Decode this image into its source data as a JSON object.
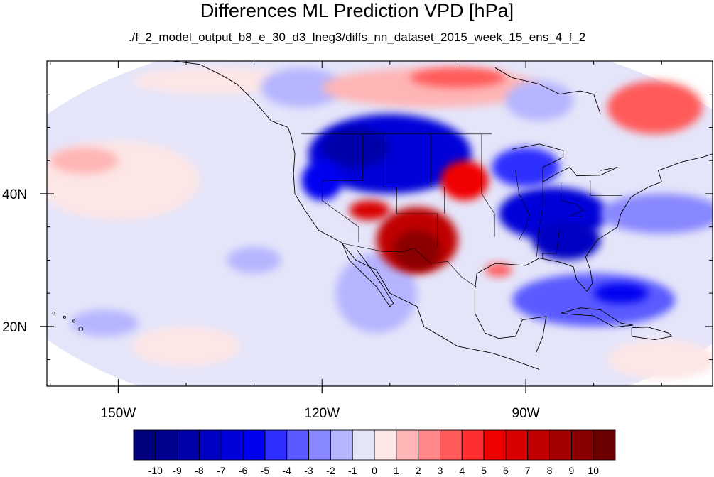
{
  "title": "Differences ML Prediction VPD [hPa]",
  "subtitle": "./f_2_model_output_b8_e_30_d3_lneg3/diffs_nn_dataset_2015_week_15_ens_4_f_2",
  "chart_data": {
    "type": "heatmap",
    "title": "Differences ML Prediction VPD [hPa]",
    "subtitle": "./f_2_model_output_b8_e_30_d3_lneg3/diffs_nn_dataset_2015_week_15_ens_4_f_2",
    "xlim": [
      -160.5,
      -62.5
    ],
    "ylim": [
      11,
      60
    ],
    "x_ticks": [
      {
        "value": -150,
        "label": "150W"
      },
      {
        "value": -120,
        "label": "120W"
      },
      {
        "value": -90,
        "label": "90W"
      }
    ],
    "y_ticks": [
      {
        "value": 40,
        "label": "40N"
      },
      {
        "value": 20,
        "label": "20N"
      }
    ],
    "colorbar": {
      "levels": [
        -10,
        -9,
        -8,
        -7,
        -6,
        -5,
        -4,
        -3,
        -2,
        -1,
        0,
        1,
        2,
        3,
        4,
        5,
        6,
        7,
        8,
        9,
        10
      ],
      "colors": [
        "#00007a",
        "#00008f",
        "#0000a8",
        "#0000c2",
        "#0000d9",
        "#0000f0",
        "#2f2fff",
        "#5a5aff",
        "#8787ff",
        "#b5b5ff",
        "#e5e5fa",
        "#fde6e6",
        "#ffb5b5",
        "#ff8787",
        "#ff5a5a",
        "#ff2f2f",
        "#f00000",
        "#d90000",
        "#c00000",
        "#a30000",
        "#8a0000",
        "#6b0000"
      ]
    },
    "regions": [
      {
        "name": "background",
        "lon": -111,
        "lat": 35,
        "rx": 60,
        "ry": 30,
        "value": -0.6
      },
      {
        "name": "north-pacific-pink",
        "lon": -150,
        "lat": 42,
        "rx": 12,
        "ry": 6,
        "value": 0.8
      },
      {
        "name": "pacific-pink-west",
        "lon": -155,
        "lat": 45,
        "rx": 5,
        "ry": 2,
        "value": 1.3
      },
      {
        "name": "pacific-pink-north",
        "lon": -136,
        "lat": 57,
        "rx": 12,
        "ry": 2,
        "value": 0.7
      },
      {
        "name": "gulf-alaska-blue",
        "lon": -123,
        "lat": 56,
        "rx": 6,
        "ry": 3,
        "value": -1.5
      },
      {
        "name": "canada-pink-center",
        "lon": -104,
        "lat": 56,
        "rx": 16,
        "ry": 3,
        "value": 1.8
      },
      {
        "name": "canada-red-center",
        "lon": -100,
        "lat": 57.5,
        "rx": 7,
        "ry": 1.5,
        "value": 3.2
      },
      {
        "name": "canada-red-east",
        "lon": -71,
        "lat": 53,
        "rx": 7,
        "ry": 4,
        "value": 3.0
      },
      {
        "name": "canada-blue-mid",
        "lon": -88,
        "lat": 54,
        "rx": 5,
        "ry": 3,
        "value": -1.2
      },
      {
        "name": "northwest-blue",
        "lon": -110,
        "lat": 46,
        "rx": 12,
        "ry": 6,
        "value": -7.0
      },
      {
        "name": "northwest-core",
        "lon": -115,
        "lat": 47,
        "rx": 5,
        "ry": 3,
        "value": -8.5
      },
      {
        "name": "pacific-coast-blue",
        "lon": -120,
        "lat": 42,
        "rx": 3,
        "ry": 3,
        "value": -6.0
      },
      {
        "name": "mexico-blue-coast",
        "lon": -112,
        "lat": 25,
        "rx": 6,
        "ry": 6,
        "value": -2.0
      },
      {
        "name": "southwest-red",
        "lon": -106,
        "lat": 33,
        "rx": 6,
        "ry": 5,
        "value": 7.0
      },
      {
        "name": "southwest-core",
        "lon": -106,
        "lat": 31.5,
        "rx": 3.5,
        "ry": 3,
        "value": 9.0
      },
      {
        "name": "nevada-red",
        "lon": -113,
        "lat": 37.5,
        "rx": 3,
        "ry": 1.5,
        "value": 6.5
      },
      {
        "name": "great-plains-red",
        "lon": -99,
        "lat": 42,
        "rx": 3.5,
        "ry": 3,
        "value": 5.0
      },
      {
        "name": "east-blue",
        "lon": -86,
        "lat": 37,
        "rx": 8,
        "ry": 4,
        "value": -7.0
      },
      {
        "name": "southeast-blue",
        "lon": -84,
        "lat": 33,
        "rx": 5,
        "ry": 3,
        "value": -7.5
      },
      {
        "name": "midwest-blue",
        "lon": -90,
        "lat": 44,
        "rx": 5,
        "ry": 3,
        "value": -5.0
      },
      {
        "name": "atlantic-blue",
        "lon": -70,
        "lat": 37,
        "rx": 9,
        "ry": 3,
        "value": -2.5
      },
      {
        "name": "caribbean-blue",
        "lon": -80,
        "lat": 24,
        "rx": 12,
        "ry": 4,
        "value": -3.5
      },
      {
        "name": "caribbean-core",
        "lon": -76,
        "lat": 25,
        "rx": 4,
        "ry": 1.5,
        "value": -6.0
      },
      {
        "name": "gulf-red-small",
        "lon": -94,
        "lat": 28.5,
        "rx": 2,
        "ry": 1,
        "value": 3.0
      },
      {
        "name": "tropical-pacific-pink",
        "lon": -140,
        "lat": 17,
        "rx": 8,
        "ry": 3,
        "value": 0.8
      },
      {
        "name": "tropical-pacific-blue",
        "lon": -130,
        "lat": 30,
        "rx": 4,
        "ry": 2,
        "value": -1.8
      },
      {
        "name": "south-pink-east",
        "lon": -70,
        "lat": 15,
        "rx": 8,
        "ry": 3,
        "value": 0.9
      },
      {
        "name": "hawaii-blue",
        "lon": -152,
        "lat": 20.5,
        "rx": 5,
        "ry": 2,
        "value": -1.5
      }
    ]
  }
}
